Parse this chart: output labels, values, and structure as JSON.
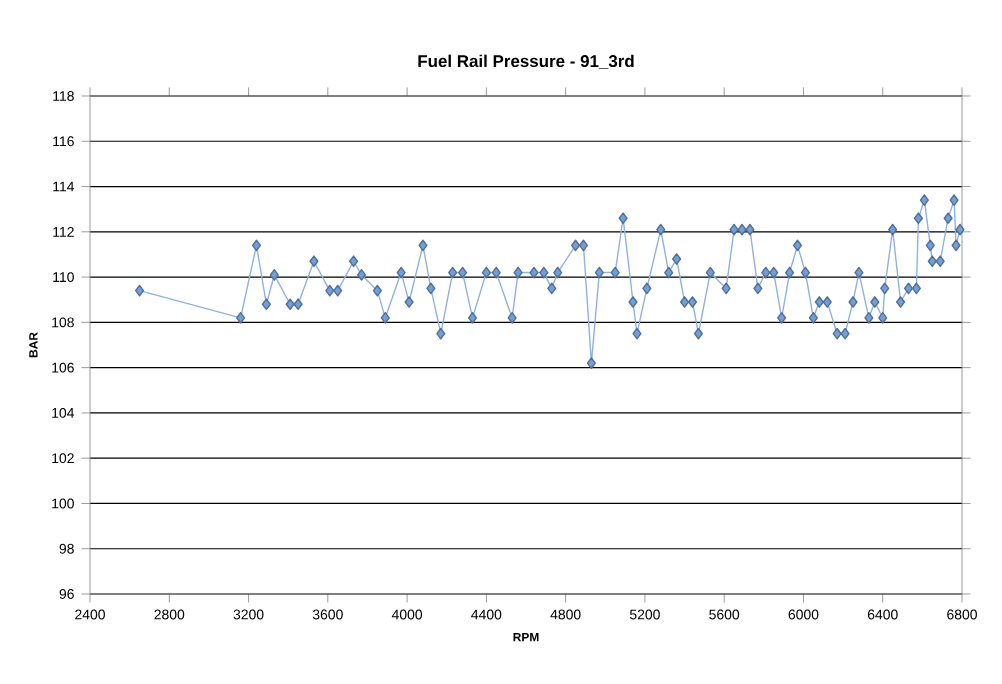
{
  "chart_data": {
    "type": "line",
    "title": "Fuel Rail Pressure - 91_3rd",
    "xlabel": "RPM",
    "ylabel": "BAR",
    "x": [
      2650,
      3160,
      3240,
      3290,
      3330,
      3410,
      3450,
      3530,
      3610,
      3650,
      3730,
      3770,
      3850,
      3890,
      3970,
      4010,
      4080,
      4120,
      4170,
      4230,
      4280,
      4330,
      4400,
      4450,
      4530,
      4560,
      4640,
      4690,
      4730,
      4760,
      4850,
      4890,
      4930,
      4970,
      5050,
      5090,
      5140,
      5160,
      5210,
      5280,
      5320,
      5360,
      5400,
      5440,
      5470,
      5530,
      5610,
      5650,
      5690,
      5730,
      5770,
      5810,
      5850,
      5890,
      5930,
      5970,
      6010,
      6050,
      6080,
      6120,
      6170,
      6210,
      6250,
      6280,
      6330,
      6360,
      6400,
      6410,
      6450,
      6490,
      6530,
      6570,
      6580,
      6610,
      6640,
      6650,
      6690,
      6730,
      6760,
      6770,
      6790
    ],
    "values": [
      109.4,
      108.2,
      111.4,
      108.8,
      110.1,
      108.8,
      108.8,
      110.7,
      109.4,
      109.4,
      110.7,
      110.1,
      109.4,
      108.2,
      110.2,
      108.9,
      111.4,
      109.5,
      107.5,
      110.2,
      110.2,
      108.2,
      110.2,
      110.2,
      108.2,
      110.2,
      110.2,
      110.2,
      109.5,
      110.2,
      111.4,
      111.4,
      106.2,
      110.2,
      110.2,
      112.6,
      108.9,
      107.5,
      109.5,
      112.1,
      110.2,
      110.8,
      108.9,
      108.9,
      107.5,
      110.2,
      109.5,
      112.1,
      112.1,
      112.1,
      109.5,
      110.2,
      110.2,
      108.2,
      110.2,
      111.4,
      110.2,
      108.2,
      108.9,
      108.9,
      107.5,
      107.5,
      108.9,
      110.2,
      108.2,
      108.9,
      108.2,
      109.5,
      112.1,
      108.9,
      109.5,
      109.5,
      112.6,
      113.4,
      111.4,
      110.7,
      110.7,
      112.6,
      113.4,
      111.4,
      112.1
    ],
    "color": "#739fd6",
    "marker": "diamond",
    "line_style": "solid",
    "grid": "y",
    "xlim": [
      2400,
      6800
    ],
    "xticks": [
      2400,
      2800,
      3200,
      3600,
      4000,
      4400,
      4800,
      5200,
      5600,
      6000,
      6400,
      6800
    ],
    "ylim": [
      96,
      118
    ],
    "yticks": [
      96,
      98,
      100,
      102,
      104,
      106,
      108,
      110,
      112,
      114,
      116,
      118
    ]
  }
}
